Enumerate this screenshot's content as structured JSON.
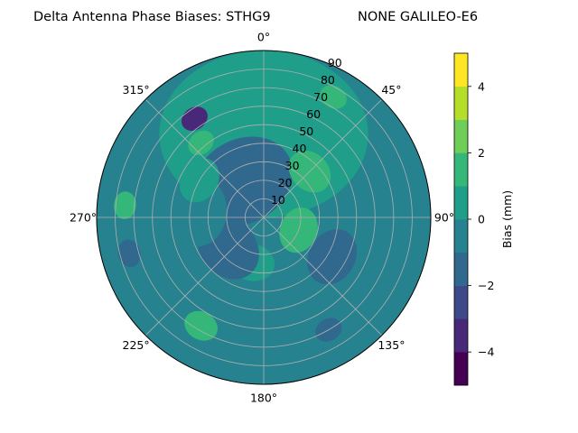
{
  "chart_data": {
    "type": "heatmap",
    "projection": "polar",
    "title": "Delta Antenna Phase Biases: STHG9",
    "subtitle": "NONE GALILEO-E6",
    "theta_ticks": [
      "0°",
      "45°",
      "90°",
      "135°",
      "180°",
      "225°",
      "270°",
      "315°"
    ],
    "r_ticks": [
      "10",
      "20",
      "30",
      "40",
      "50",
      "60",
      "70",
      "80",
      "90"
    ],
    "r_range": [
      0,
      90
    ],
    "theta_zero": "top",
    "theta_direction": "clockwise",
    "grid": true,
    "colorbar": {
      "label": "Bias (mm)",
      "ticks": [
        "−4",
        "−2",
        "0",
        "2",
        "4"
      ],
      "range": [
        -5,
        5
      ],
      "levels": [
        -5,
        -4.5,
        -4,
        -3.5,
        -3,
        -2.5,
        -2,
        -1.5,
        -1,
        -0.5,
        0,
        0.5,
        1,
        1.5,
        2,
        2.5,
        3,
        3.5,
        4,
        4.5,
        5
      ],
      "colors": [
        "#440154",
        "#482878",
        "#3e4989",
        "#31688e",
        "#26828e",
        "#1f9e89",
        "#35b779",
        "#6ece58",
        "#b5de2b",
        "#fde725"
      ]
    },
    "regions": [
      {
        "az": 0,
        "el_from": 0,
        "el_to": 90,
        "bias": 0.3
      },
      {
        "az": 330,
        "el_from": 45,
        "el_to": 90,
        "bias": -1.5
      },
      {
        "az": 325,
        "el_from": 20,
        "el_to": 30,
        "bias": -3.2
      },
      {
        "az": 30,
        "el_from": 10,
        "el_to": 20,
        "bias": 1.2
      },
      {
        "az": 45,
        "el_from": 45,
        "el_to": 65,
        "bias": 1.8
      },
      {
        "az": 60,
        "el_from": 10,
        "el_to": 20,
        "bias": -0.3
      },
      {
        "az": 110,
        "el_from": 60,
        "el_to": 80,
        "bias": 1.3
      },
      {
        "az": 120,
        "el_from": 35,
        "el_to": 60,
        "bias": -1.1
      },
      {
        "az": 150,
        "el_from": 15,
        "el_to": 25,
        "bias": -1.2
      },
      {
        "az": 210,
        "el_from": 15,
        "el_to": 30,
        "bias": 1.3
      },
      {
        "az": 180,
        "el_from": 50,
        "el_to": 60,
        "bias": -0.6
      },
      {
        "az": 195,
        "el_from": 55,
        "el_to": 75,
        "bias": 0.4
      },
      {
        "az": 230,
        "el_from": 50,
        "el_to": 80,
        "bias": -1.2
      },
      {
        "az": 255,
        "el_from": 10,
        "el_to": 20,
        "bias": -1.8
      },
      {
        "az": 275,
        "el_from": 40,
        "el_to": 70,
        "bias": -1.0
      },
      {
        "az": 275,
        "el_from": 10,
        "el_to": 20,
        "bias": 1.5
      },
      {
        "az": 300,
        "el_from": 40,
        "el_to": 60,
        "bias": 0.2
      },
      {
        "az": 320,
        "el_from": 35,
        "el_to": 40,
        "bias": 1.4
      }
    ]
  }
}
